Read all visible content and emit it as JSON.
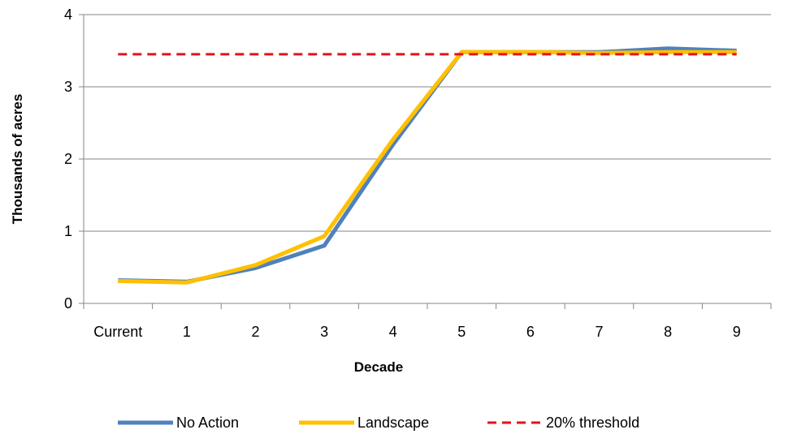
{
  "chart_data": {
    "type": "line",
    "title": "",
    "xlabel": "Decade",
    "ylabel": "Thousands of acres",
    "categories": [
      "Current",
      "1",
      "2",
      "3",
      "4",
      "5",
      "6",
      "7",
      "8",
      "9"
    ],
    "ylim": [
      0,
      4
    ],
    "yticks": [
      "0",
      "1",
      "2",
      "3",
      "4"
    ],
    "grid": "horizontal",
    "legend": "bottom",
    "series": [
      {
        "name": "No Action",
        "color": "#4f81bd",
        "style": "solid",
        "values": [
          0.32,
          0.3,
          0.49,
          0.8,
          2.2,
          3.48,
          3.48,
          3.48,
          3.53,
          3.5
        ]
      },
      {
        "name": "Landscape",
        "color": "#ffc000",
        "style": "solid",
        "values": [
          0.31,
          0.29,
          0.53,
          0.93,
          2.27,
          3.48,
          3.48,
          3.47,
          3.48,
          3.48
        ]
      },
      {
        "name": "20% threshold",
        "color": "#e3121b",
        "style": "dashed",
        "values": [
          3.45,
          3.45,
          3.45,
          3.45,
          3.45,
          3.45,
          3.45,
          3.45,
          3.45,
          3.45
        ]
      }
    ]
  }
}
